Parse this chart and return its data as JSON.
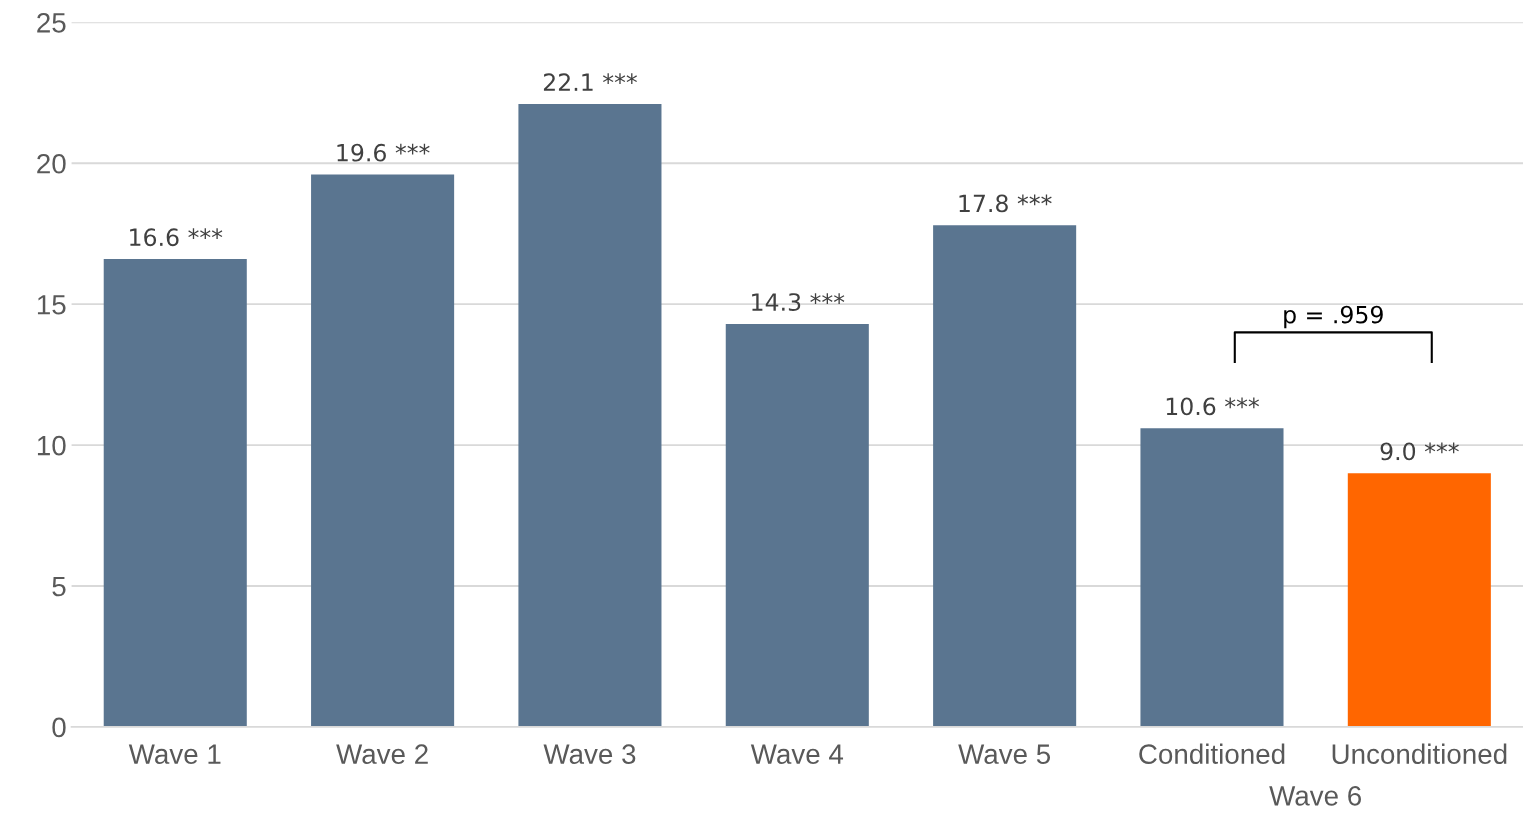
{
  "chart_data": {
    "type": "bar",
    "categories": [
      "Wave 1",
      "Wave 2",
      "Wave 3",
      "Wave 4",
      "Wave 5",
      "Conditioned",
      "Unconditioned"
    ],
    "values": [
      16.6,
      19.6,
      22.1,
      14.3,
      17.8,
      10.6,
      9.0
    ],
    "colors": [
      "#5a7590",
      "#5a7590",
      "#5a7590",
      "#5a7590",
      "#5a7590",
      "#5a7590",
      "#ff6600"
    ],
    "value_labels": [
      "16.6 ***",
      "19.6 ***",
      "22.1 ***",
      "14.3 ***",
      "17.8 ***",
      "10.6 ***",
      "9.0 ***"
    ],
    "ylim": [
      0,
      25
    ],
    "yticks": [
      0,
      5,
      10,
      15,
      20,
      25
    ],
    "grid": "y",
    "annotations": [
      "p = .959",
      "Wave 6"
    ]
  }
}
